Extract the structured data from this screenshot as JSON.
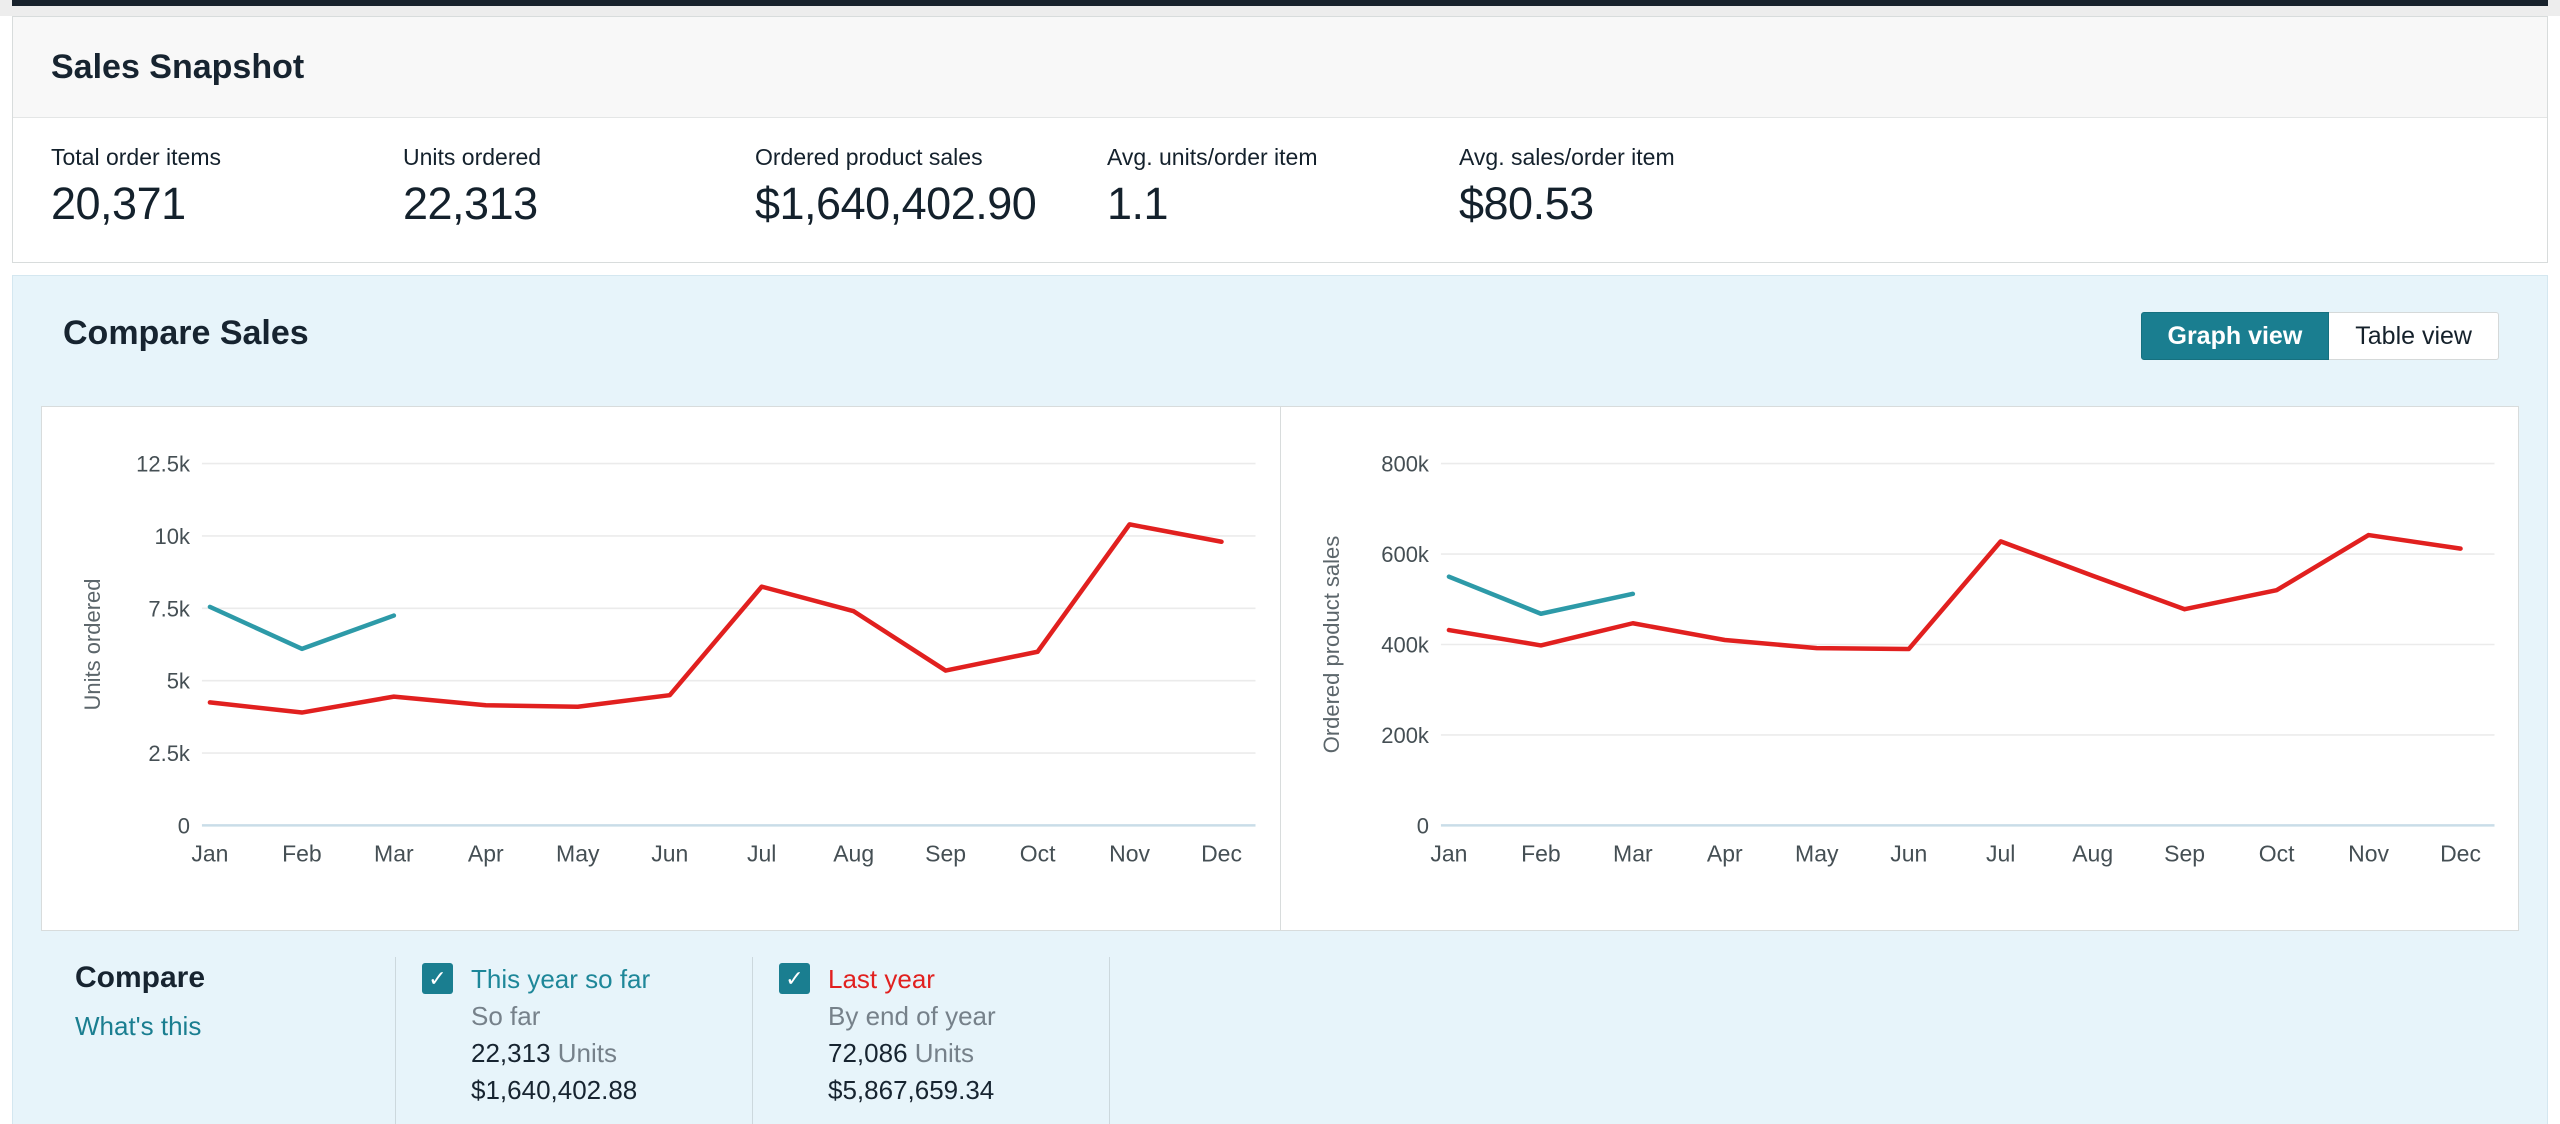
{
  "snapshot": {
    "title": "Sales Snapshot",
    "stats": [
      {
        "label": "Total order items",
        "value": "20,371"
      },
      {
        "label": "Units ordered",
        "value": "22,313"
      },
      {
        "label": "Ordered product sales",
        "value": "$1,640,402.90"
      },
      {
        "label": "Avg. units/order item",
        "value": "1.1"
      },
      {
        "label": "Avg. sales/order item",
        "value": "$80.53"
      }
    ]
  },
  "compare": {
    "title": "Compare Sales",
    "view_toggle": {
      "graph_label": "Graph view",
      "table_label": "Table view",
      "active": "Graph view",
      "active_color": "#1a7e90"
    },
    "legend": {
      "heading": "Compare",
      "whats_this": "What's this",
      "items": [
        {
          "name": "This year so far",
          "name_color": "#1e8799",
          "checked": true,
          "subtitle": "So far",
          "units": "22,313",
          "units_suffix": "Units",
          "sales": "$1,640,402.88"
        },
        {
          "name": "Last year",
          "name_color": "#e1201f",
          "checked": true,
          "subtitle": "By end of year",
          "units": "72,086",
          "units_suffix": "Units",
          "sales": "$5,867,659.34"
        }
      ]
    },
    "checkmark": "✓"
  },
  "chart_data": [
    {
      "type": "line",
      "title": "",
      "xlabel": "",
      "ylabel": "Units ordered",
      "grid": true,
      "legend_position": "bottom",
      "categories": [
        "Jan",
        "Feb",
        "Mar",
        "Apr",
        "May",
        "Jun",
        "Jul",
        "Aug",
        "Sep",
        "Oct",
        "Nov",
        "Dec"
      ],
      "ylim": [
        0,
        14000
      ],
      "yticks": [
        {
          "value": 0,
          "label": "0"
        },
        {
          "value": 2500,
          "label": "2.5k"
        },
        {
          "value": 5000,
          "label": "5k"
        },
        {
          "value": 7500,
          "label": "7.5k"
        },
        {
          "value": 10000,
          "label": "10k"
        },
        {
          "value": 12500,
          "label": "12.5k"
        }
      ],
      "series": [
        {
          "name": "This year so far",
          "color": "#2d9aa8",
          "values": [
            7550,
            6100,
            7250
          ]
        },
        {
          "name": "Last year",
          "color": "#e1201f",
          "values": [
            4250,
            3900,
            4450,
            4150,
            4100,
            4500,
            8250,
            7400,
            5350,
            6000,
            10400,
            9800
          ]
        }
      ]
    },
    {
      "type": "line",
      "title": "",
      "xlabel": "",
      "ylabel": "Ordered product sales",
      "grid": true,
      "legend_position": "bottom",
      "categories": [
        "Jan",
        "Feb",
        "Mar",
        "Apr",
        "May",
        "Jun",
        "Jul",
        "Aug",
        "Sep",
        "Oct",
        "Nov",
        "Dec"
      ],
      "ylim": [
        0,
        900000
      ],
      "yticks": [
        {
          "value": 0,
          "label": "0"
        },
        {
          "value": 200000,
          "label": "200k"
        },
        {
          "value": 400000,
          "label": "400k"
        },
        {
          "value": 600000,
          "label": "600k"
        },
        {
          "value": 800000,
          "label": "800k"
        }
      ],
      "series": [
        {
          "name": "This year so far",
          "color": "#2d9aa8",
          "values": [
            550000,
            468000,
            512000
          ]
        },
        {
          "name": "Last year",
          "color": "#e1201f",
          "values": [
            432000,
            398000,
            447000,
            410000,
            392000,
            390000,
            628000,
            552000,
            478000,
            520000,
            642000,
            612000
          ]
        }
      ]
    }
  ]
}
